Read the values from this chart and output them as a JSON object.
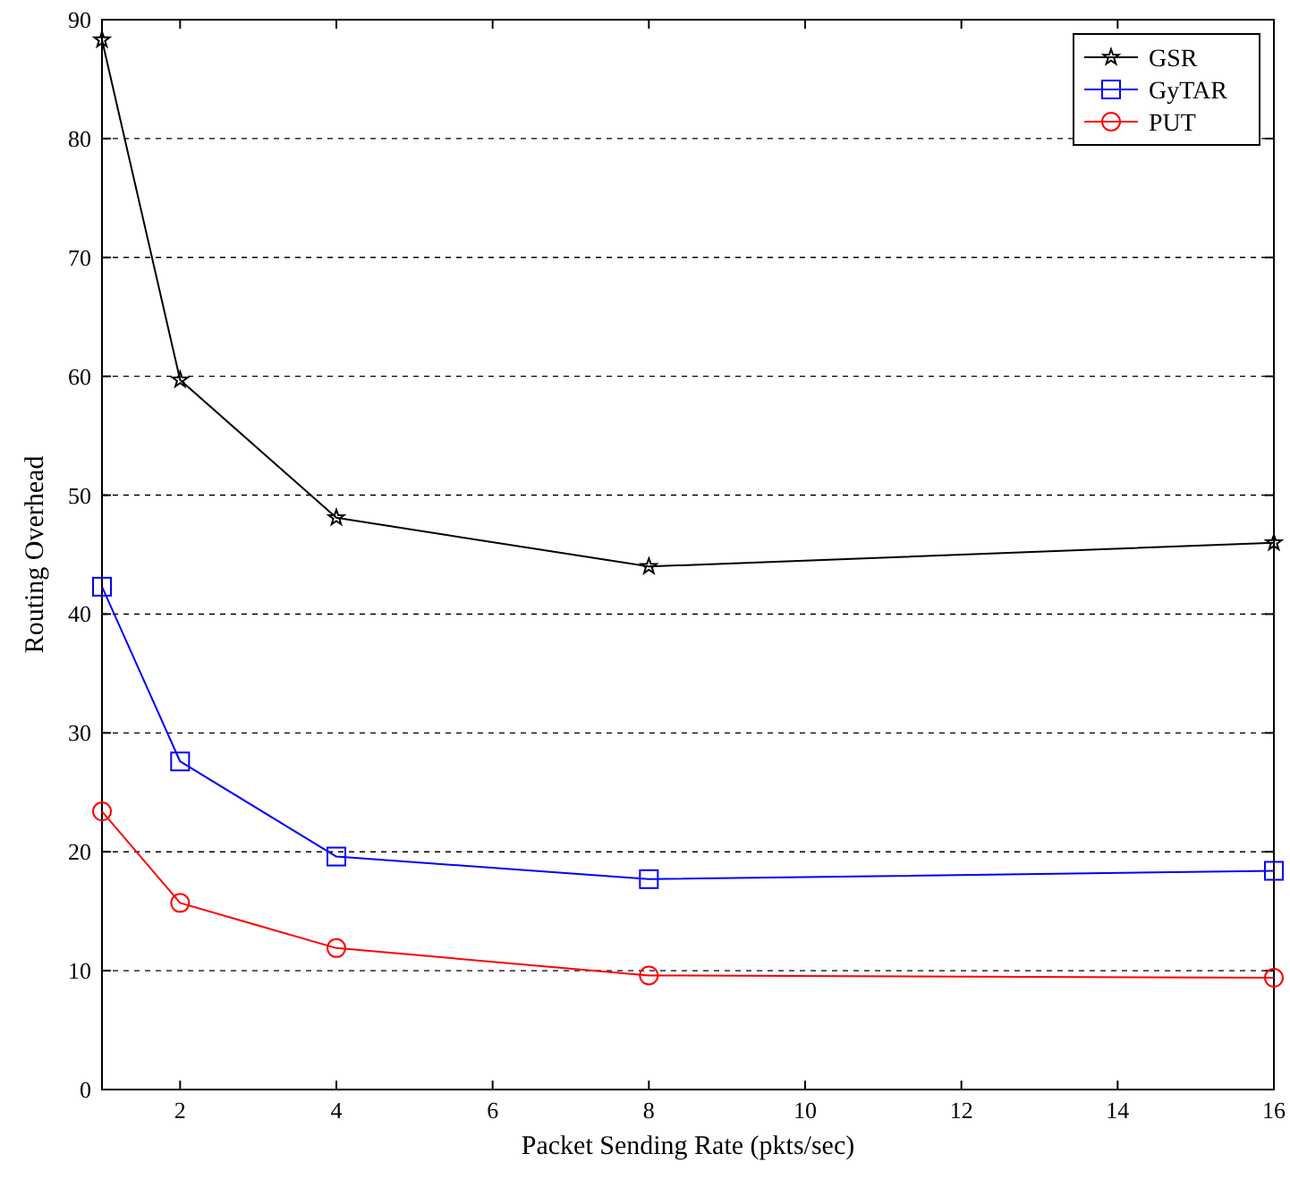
{
  "chart_data": {
    "type": "line",
    "xlabel": "Packet Sending Rate (pkts/sec)",
    "ylabel": "Routing Overhead",
    "x": [
      1,
      2,
      4,
      8,
      16
    ],
    "series": [
      {
        "name": "GSR",
        "color": "#000000",
        "marker": "star",
        "values": [
          88.3,
          59.7,
          48.1,
          44,
          46
        ]
      },
      {
        "name": "GyTAR",
        "color": "#0000ff",
        "marker": "square",
        "values": [
          42.3,
          27.6,
          19.6,
          17.7,
          18.4
        ]
      },
      {
        "name": "PUT",
        "color": "#ff0000",
        "marker": "circle",
        "values": [
          23.4,
          15.7,
          11.9,
          9.6,
          9.4
        ]
      }
    ],
    "xlim": [
      1,
      16
    ],
    "xticks": [
      2,
      4,
      6,
      8,
      10,
      12,
      14,
      16
    ],
    "ylim": [
      0,
      90
    ],
    "yticks": [
      0,
      10,
      20,
      30,
      40,
      50,
      60,
      70,
      80,
      90
    ],
    "grid": "y",
    "legend": "top right",
    "line_style": "solid"
  }
}
